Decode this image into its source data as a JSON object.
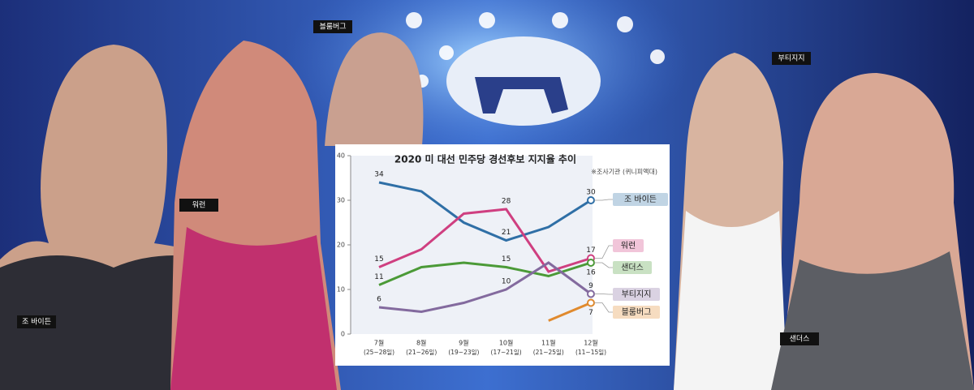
{
  "captions": [
    "블룸버그",
    "워런",
    "부티지지",
    "조 바이든",
    "샌더스"
  ],
  "chart_data": {
    "type": "line",
    "title": "2020 미 대선 민주당 경선후보 지지율 추이",
    "subtitle": "※조사기관 (퀴니피액대)",
    "categories": [
      "7월",
      "8월",
      "9월",
      "10월",
      "11월",
      "12월"
    ],
    "category_notes": [
      "(25~28일)",
      "(21~26일)",
      "(19~23일)",
      "(17~21일)",
      "(21~25일)",
      "(11~15일)"
    ],
    "ylim": [
      0,
      40
    ],
    "yticks": [
      0,
      10,
      20,
      30,
      40
    ],
    "series": [
      {
        "name": "조 바이든",
        "color": "#2f6fa6",
        "values": [
          34,
          32,
          25,
          21,
          24,
          30
        ],
        "label_points": [
          0,
          3,
          5
        ]
      },
      {
        "name": "워런",
        "color": "#cf3f80",
        "values": [
          15,
          19,
          27,
          28,
          14,
          17
        ],
        "label_points": [
          0,
          3,
          5
        ]
      },
      {
        "name": "샌더스",
        "color": "#4b9a37",
        "values": [
          11,
          15,
          16,
          15,
          13,
          16
        ],
        "label_points": [
          0,
          3,
          5
        ]
      },
      {
        "name": "부티지지",
        "color": "#836a9e",
        "values": [
          6,
          5,
          7,
          10,
          16,
          9
        ],
        "label_points": [
          0,
          3,
          5
        ]
      },
      {
        "name": "블룸버그",
        "color": "#e08a2e",
        "values": [
          null,
          null,
          null,
          null,
          3,
          7
        ],
        "label_points": [
          5
        ]
      }
    ]
  }
}
